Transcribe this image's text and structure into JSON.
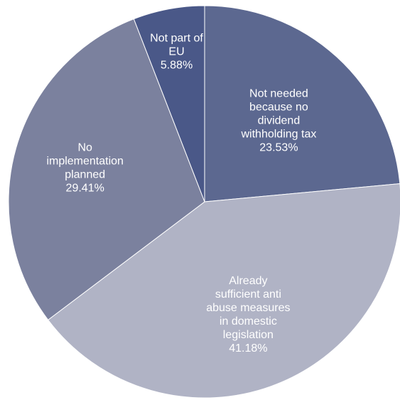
{
  "chart_data": {
    "type": "pie",
    "title": "",
    "slices": [
      {
        "label_lines": [
          "Not needed",
          "because no",
          "dividend",
          "withholding tax"
        ],
        "value": 23.53,
        "value_label": "23.53%",
        "color": "#5c6890"
      },
      {
        "label_lines": [
          "Already",
          "sufficient anti",
          "abuse measures",
          "in domestic",
          "legislation"
        ],
        "value": 41.18,
        "value_label": "41.18%",
        "color": "#b0b3c5"
      },
      {
        "label_lines": [
          "No",
          "implementation",
          "planned"
        ],
        "value": 29.41,
        "value_label": "29.41%",
        "color": "#7b819e"
      },
      {
        "label_lines": [
          "Not part of",
          "EU"
        ],
        "value": 5.88,
        "value_label": "5.88%",
        "color": "#4a5888"
      }
    ],
    "start_angle_deg": 0,
    "direction": "clockwise",
    "legend": "none"
  }
}
